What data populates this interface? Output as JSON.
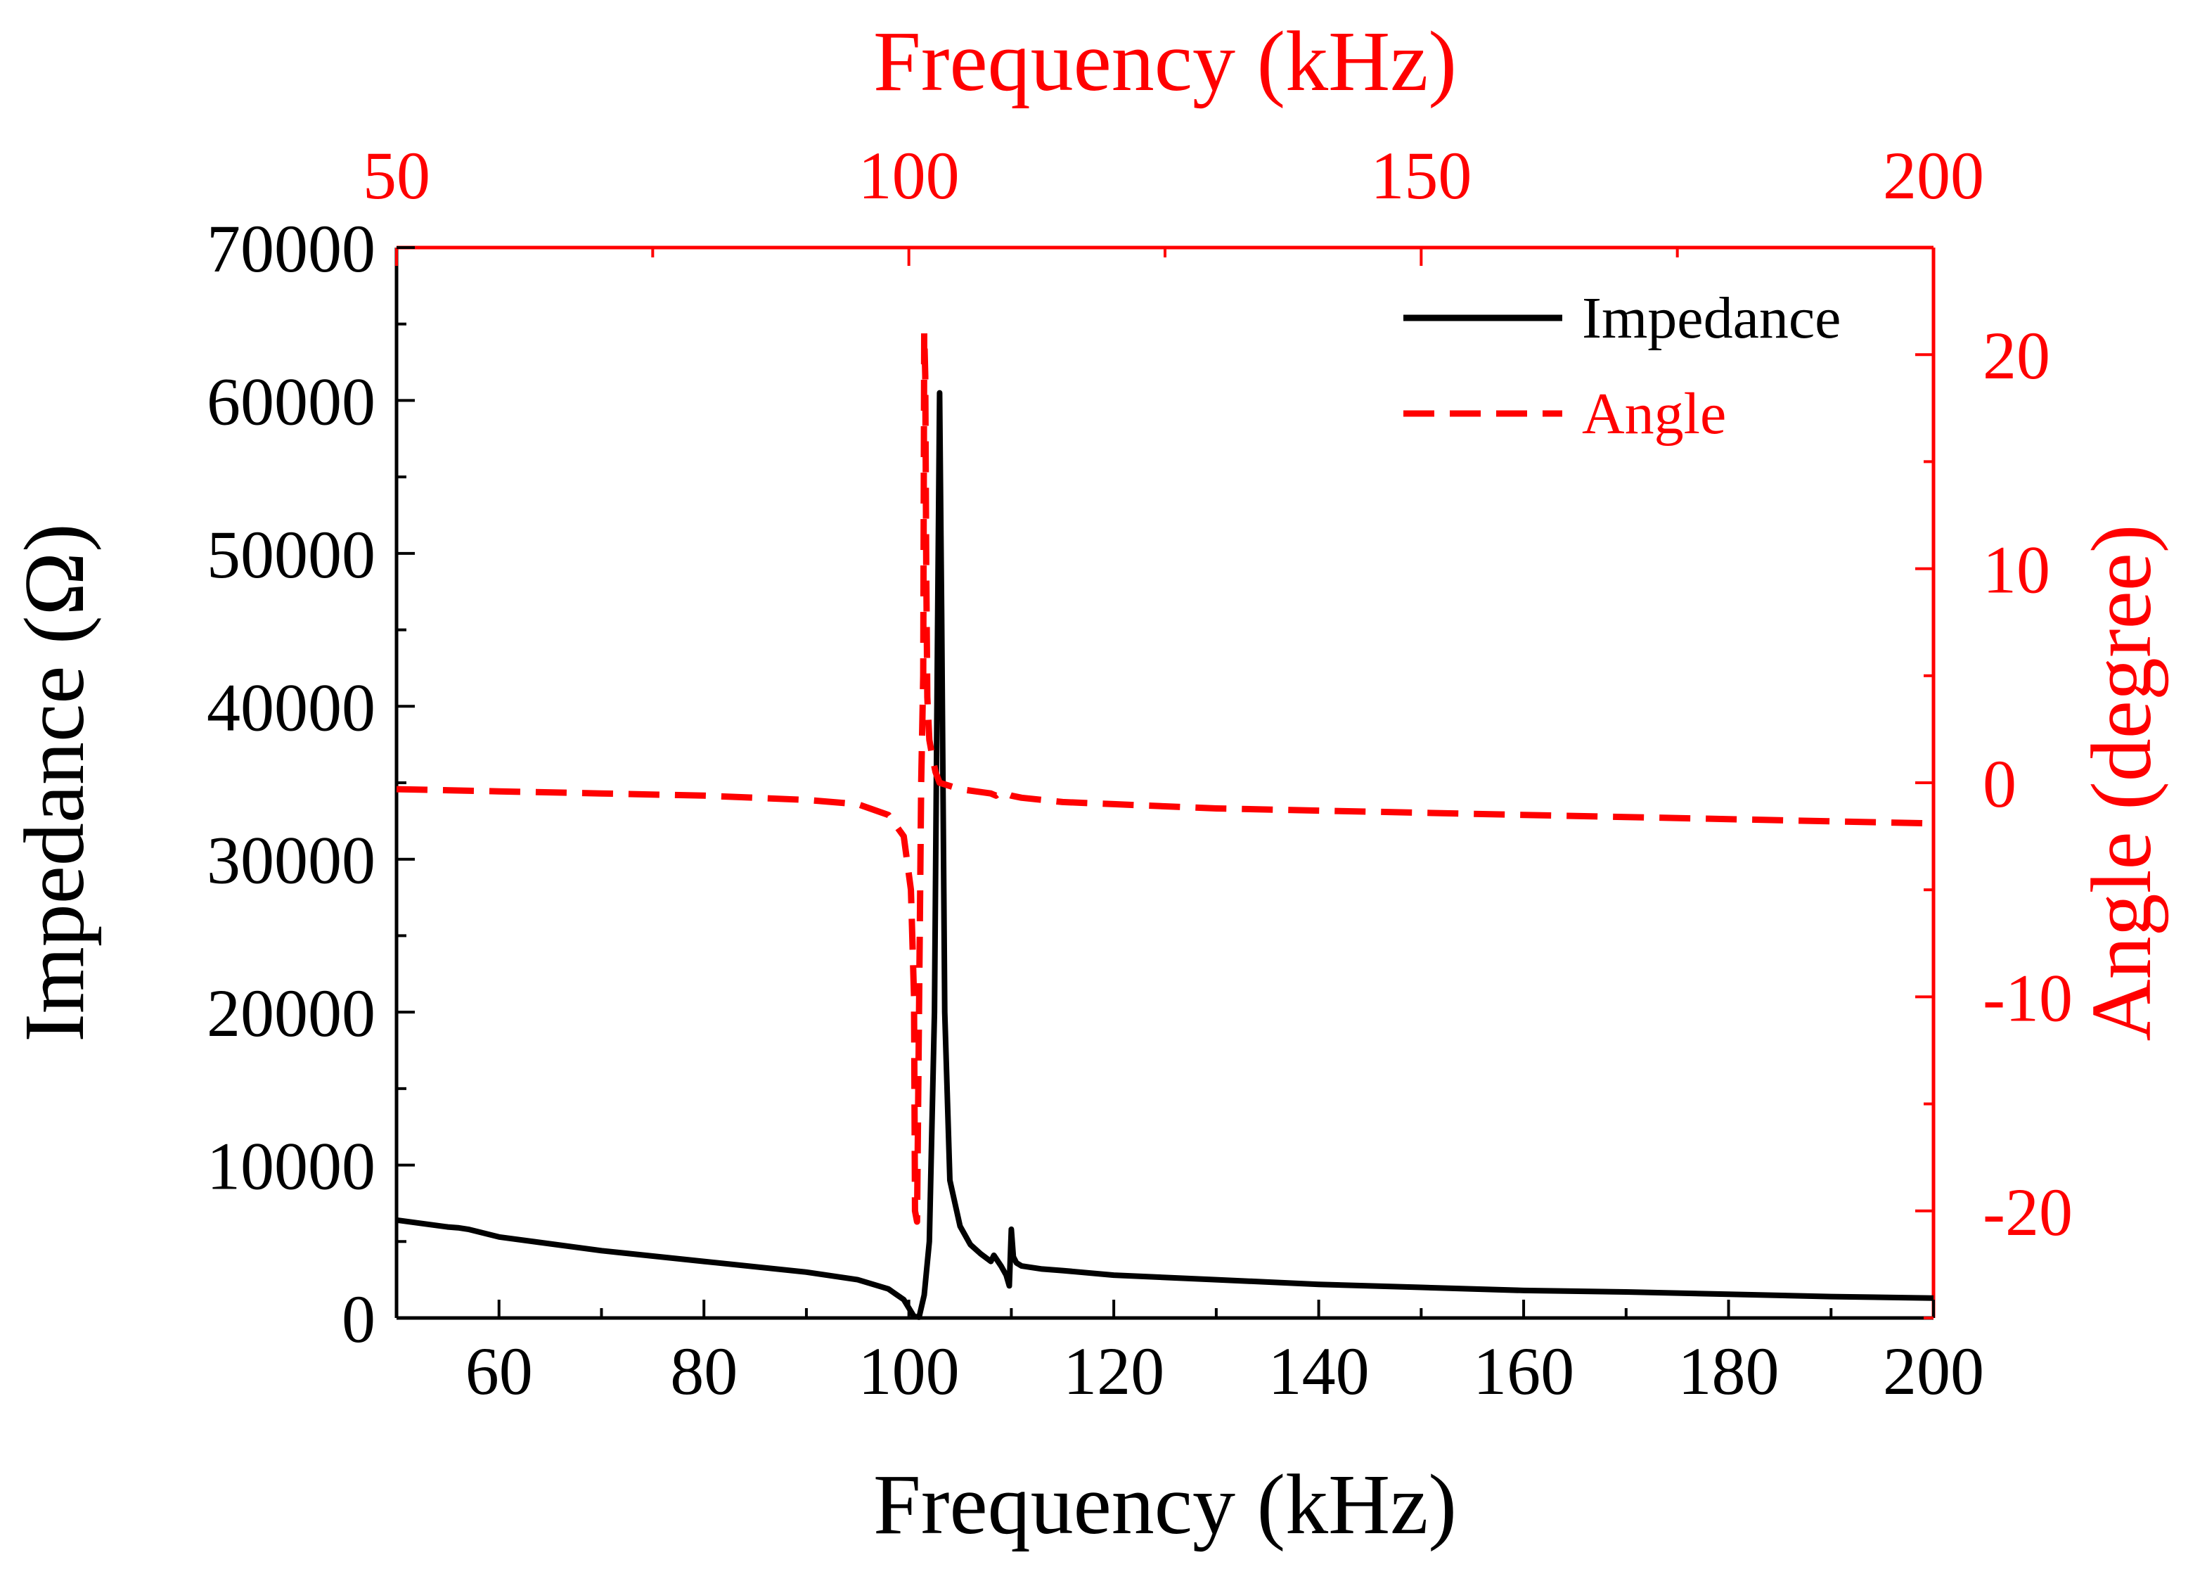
{
  "chart_data": {
    "type": "line",
    "colors": {
      "impedance": "#000000",
      "angle": "#ff0000"
    },
    "bottom_axis": {
      "label": "Frequency (kHz)",
      "range": [
        50,
        200
      ],
      "ticks": [
        60,
        80,
        100,
        120,
        140,
        160,
        180,
        200
      ],
      "tick_labels": [
        "60",
        "80",
        "100",
        "120",
        "140",
        "160",
        "180",
        "200"
      ]
    },
    "top_axis": {
      "label": "Frequency (kHz)",
      "range": [
        50,
        200
      ],
      "ticks": [
        50,
        100,
        150,
        200
      ],
      "tick_labels": [
        "50",
        "100",
        "150",
        "200"
      ]
    },
    "left_axis": {
      "label": "Impedance (Ω)",
      "range": [
        0,
        70000
      ],
      "ticks": [
        0,
        10000,
        20000,
        30000,
        40000,
        50000,
        60000,
        70000
      ],
      "tick_labels": [
        "0",
        "10000",
        "20000",
        "30000",
        "40000",
        "50000",
        "60000",
        "70000"
      ]
    },
    "right_axis": {
      "label": "Angle (degree)",
      "range": [
        -25,
        25
      ],
      "ticks": [
        -20,
        -10,
        0,
        10,
        20
      ],
      "tick_labels": [
        "-20",
        "-10",
        "0",
        "10",
        "20"
      ]
    },
    "legend": {
      "position": "top-right",
      "entries": [
        "Impedance",
        "Angle"
      ]
    },
    "series": [
      {
        "name": "Impedance",
        "axis": "left",
        "style": "solid",
        "x": [
          50,
          55,
          56,
          57,
          60,
          70,
          80,
          90,
          95,
          98,
          99.5,
          100.5,
          101,
          101.5,
          102,
          102.5,
          102.8,
          103,
          103.2,
          103.5,
          104,
          105,
          106,
          107,
          108,
          108.3,
          109,
          109.5,
          109.8,
          110,
          110.2,
          110.5,
          111,
          113,
          115,
          120,
          130,
          140,
          150,
          160,
          170,
          180,
          190,
          200
        ],
        "values": [
          6400,
          5950,
          5900,
          5800,
          5300,
          4400,
          3700,
          3000,
          2500,
          1900,
          1200,
          100,
          50,
          1500,
          5000,
          20000,
          45000,
          60500,
          46000,
          20000,
          9000,
          6000,
          4800,
          4200,
          3700,
          4100,
          3400,
          2800,
          2100,
          5800,
          4000,
          3600,
          3400,
          3200,
          3100,
          2800,
          2500,
          2200,
          2000,
          1800,
          1700,
          1550,
          1400,
          1300
        ]
      },
      {
        "name": "Angle",
        "axis": "right",
        "style": "dashed",
        "x": [
          50,
          60,
          70,
          80,
          90,
          95,
          98,
          99.5,
          100.2,
          100.5,
          100.6,
          100.8,
          101.2,
          101.4,
          101.5,
          101.6,
          101.7,
          101.8,
          102,
          102.3,
          102.6,
          103,
          105,
          108,
          108.5,
          109,
          110,
          111,
          115,
          120,
          130,
          140,
          150,
          160,
          170,
          180,
          190,
          200
        ],
        "values": [
          -0.3,
          -0.4,
          -0.5,
          -0.6,
          -0.8,
          -1.0,
          -1.5,
          -2.5,
          -5,
          -10,
          -20,
          -20.5,
          0,
          5,
          21,
          19,
          10,
          4,
          2,
          1.2,
          0.5,
          0,
          -0.3,
          -0.5,
          -0.6,
          -0.4,
          -0.6,
          -0.7,
          -0.9,
          -1.0,
          -1.2,
          -1.3,
          -1.4,
          -1.5,
          -1.6,
          -1.7,
          -1.8,
          -1.9
        ]
      }
    ]
  }
}
